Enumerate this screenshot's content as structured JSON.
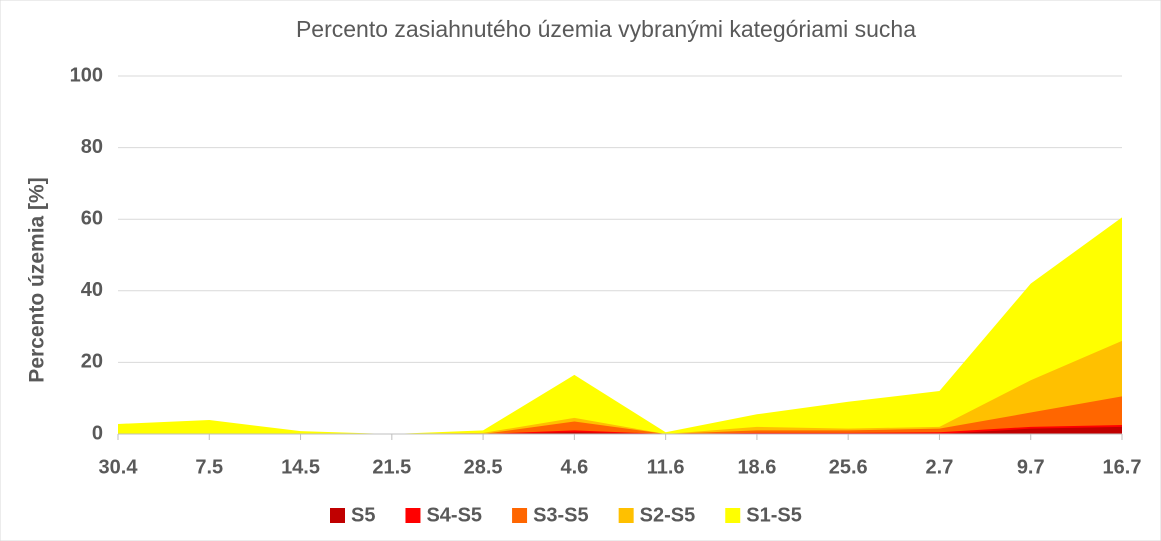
{
  "chart_data": {
    "type": "area",
    "title": "Percento zasiahnutého územia vybranými kategóriami sucha",
    "y_label": "Percento územia  [%]",
    "categories": [
      "30.4",
      "7.5",
      "14.5",
      "21.5",
      "28.5",
      "4.6",
      "11.6",
      "18.6",
      "25.6",
      "2.7",
      "9.7",
      "16.7"
    ],
    "series": [
      {
        "name": "S5",
        "color": "#c00000",
        "values": [
          0,
          0,
          0,
          0,
          0,
          0.5,
          0,
          0,
          0,
          0,
          1.5,
          2
        ]
      },
      {
        "name": "S4-S5",
        "color": "#ff0000",
        "values": [
          0,
          0,
          0,
          0,
          0,
          1,
          0,
          0.3,
          0.3,
          0.5,
          2,
          2.5
        ]
      },
      {
        "name": "S3-S5",
        "color": "#ff6600",
        "values": [
          0,
          0,
          0,
          0,
          0,
          3.5,
          0,
          1,
          1,
          1.5,
          6,
          10.5
        ]
      },
      {
        "name": "S2-S5",
        "color": "#ffc000",
        "values": [
          0,
          0,
          0,
          0,
          0.3,
          4.5,
          0,
          2,
          1.5,
          2,
          15,
          26
        ]
      },
      {
        "name": "S1-S5",
        "color": "#ffff00",
        "values": [
          2.8,
          3.9,
          0.8,
          0,
          1,
          16.5,
          0.5,
          5.5,
          9,
          12,
          42,
          60.5
        ]
      }
    ],
    "ylim": [
      0,
      100
    ],
    "yticks": [
      0,
      20,
      40,
      60,
      80,
      100
    ],
    "grid": true,
    "legend": "bottom"
  }
}
